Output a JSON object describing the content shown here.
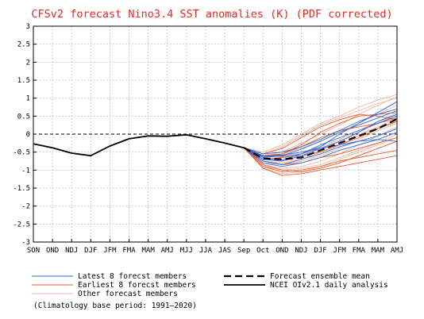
{
  "chart_data": {
    "type": "line",
    "title": "CFSv2 forecast Nino3.4 SST anomalies (K) (PDF corrected)",
    "title_color": "#e8281e",
    "xlabel": "",
    "ylabel": "",
    "x_tick_labels": [
      "SON",
      "OND",
      "NDJ",
      "DJF",
      "JFM",
      "FMA",
      "MAM",
      "AMJ",
      "MJJ",
      "JJA",
      "JAS",
      "Sep",
      "Oct",
      "OND",
      "NDJ",
      "DJF",
      "JFM",
      "FMA",
      "MAM",
      "AMJ"
    ],
    "ylim": [
      -3,
      3
    ],
    "y_ticks": [
      -3,
      -2.5,
      -2,
      -1.5,
      -1,
      -0.5,
      0,
      0.5,
      1,
      1.5,
      2,
      2.5,
      3
    ],
    "y_tick_labels": [
      "-3",
      "-2.5",
      "-2",
      "-1.5",
      "-1",
      "-0.5",
      "0",
      "0.5",
      "1",
      "1.5",
      "2",
      "2.5",
      "3"
    ],
    "grid": true,
    "zero_line": "dashed",
    "observed": {
      "name": "NCEI OIv2.1 daily analysis",
      "color": "#000000",
      "x": [
        0,
        1,
        2,
        3,
        4,
        5,
        6,
        7,
        8,
        9,
        10,
        11
      ],
      "y": [
        -0.27,
        -0.38,
        -0.53,
        -0.6,
        -0.33,
        -0.13,
        -0.05,
        -0.06,
        -0.02,
        -0.13,
        -0.25,
        -0.38
      ]
    },
    "ensemble_mean": {
      "name": "Forecast ensemble mean",
      "color": "#000000",
      "x": [
        11,
        12,
        13,
        14,
        15,
        16,
        17,
        18,
        19
      ],
      "y": [
        -0.38,
        -0.68,
        -0.7,
        -0.65,
        -0.45,
        -0.25,
        -0.05,
        0.15,
        0.42
      ]
    },
    "member_groups": [
      {
        "name": "Latest 8 forecst members",
        "color": "#2a6ad8",
        "x": [
          11,
          12,
          13,
          14,
          15,
          16,
          17,
          18,
          19
        ],
        "members": [
          [
            -0.38,
            -0.7,
            -0.75,
            -0.6,
            -0.4,
            -0.2,
            0.05,
            0.35,
            0.55
          ],
          [
            -0.38,
            -0.6,
            -0.62,
            -0.55,
            -0.35,
            0.0,
            0.3,
            0.6,
            0.9
          ],
          [
            -0.38,
            -0.75,
            -0.85,
            -0.7,
            -0.55,
            -0.35,
            -0.2,
            -0.05,
            0.15
          ],
          [
            -0.38,
            -0.65,
            -0.6,
            -0.42,
            -0.2,
            0.05,
            0.25,
            0.45,
            0.65
          ],
          [
            -0.38,
            -0.8,
            -0.9,
            -0.8,
            -0.65,
            -0.45,
            -0.3,
            -0.15,
            0.05
          ],
          [
            -0.38,
            -0.55,
            -0.5,
            -0.35,
            -0.15,
            0.1,
            0.35,
            0.55,
            0.7
          ],
          [
            -0.38,
            -0.7,
            -0.72,
            -0.55,
            -0.3,
            -0.1,
            0.1,
            0.3,
            0.5
          ],
          [
            -0.38,
            -0.62,
            -0.58,
            -0.5,
            -0.4,
            -0.3,
            -0.2,
            -0.15,
            -0.2
          ]
        ]
      },
      {
        "name": "Earliest 8 forecst members",
        "color": "#ee5a2a",
        "x": [
          11,
          12,
          13,
          14,
          15,
          16,
          17,
          18,
          19
        ],
        "members": [
          [
            -0.38,
            -0.9,
            -1.05,
            -1.0,
            -0.9,
            -0.75,
            -0.65,
            -0.55,
            -0.45
          ],
          [
            -0.38,
            -0.75,
            -0.85,
            -0.8,
            -0.65,
            -0.55,
            -0.4,
            -0.25,
            -0.1
          ],
          [
            -0.38,
            -0.55,
            -0.4,
            -0.1,
            0.2,
            0.4,
            0.55,
            0.5,
            0.4
          ],
          [
            -0.38,
            -0.65,
            -0.55,
            -0.3,
            0.05,
            0.3,
            0.5,
            0.55,
            0.6
          ],
          [
            -0.38,
            -0.85,
            -1.0,
            -1.05,
            -0.95,
            -0.8,
            -0.6,
            -0.4,
            -0.2
          ],
          [
            -0.38,
            -0.7,
            -0.65,
            -0.6,
            -0.5,
            -0.3,
            -0.1,
            0.15,
            0.35
          ],
          [
            -0.38,
            -0.95,
            -1.15,
            -1.1,
            -1.0,
            -0.9,
            -0.8,
            -0.7,
            -0.6
          ],
          [
            -0.38,
            -0.6,
            -0.55,
            -0.35,
            -0.1,
            0.1,
            0.2,
            0.3,
            0.45
          ]
        ]
      },
      {
        "name": "Other forecast members",
        "color": "#f0b2a2",
        "x": [
          11,
          12,
          13,
          14,
          15,
          16,
          17,
          18,
          19
        ],
        "members": [
          [
            -0.38,
            -0.55,
            -0.35,
            -0.05,
            0.25,
            0.45,
            0.65,
            0.85,
            1.0
          ],
          [
            -0.38,
            -0.6,
            -0.5,
            -0.25,
            0.0,
            0.25,
            0.55,
            0.8,
            1.05
          ],
          [
            -0.38,
            -0.75,
            -0.8,
            -0.7,
            -0.5,
            -0.3,
            -0.05,
            0.2,
            0.45
          ],
          [
            -0.38,
            -0.85,
            -0.95,
            -0.9,
            -0.75,
            -0.55,
            -0.3,
            -0.05,
            0.2
          ],
          [
            -0.38,
            -0.65,
            -0.6,
            -0.5,
            -0.35,
            -0.15,
            0.1,
            0.35,
            0.6
          ],
          [
            -0.38,
            -0.7,
            -0.75,
            -0.65,
            -0.45,
            -0.2,
            0.05,
            0.3,
            0.55
          ],
          [
            -0.38,
            -0.9,
            -1.0,
            -0.95,
            -0.85,
            -0.65,
            -0.45,
            -0.25,
            0.0
          ],
          [
            -0.38,
            -0.5,
            -0.3,
            0.0,
            0.3,
            0.5,
            0.75,
            0.95,
            1.1
          ],
          [
            -0.38,
            -0.8,
            -0.85,
            -0.75,
            -0.6,
            -0.4,
            -0.15,
            0.1,
            0.3
          ],
          [
            -0.38,
            -0.6,
            -0.55,
            -0.4,
            -0.2,
            0.05,
            0.3,
            0.55,
            0.8
          ],
          [
            -0.38,
            -0.95,
            -1.1,
            -1.05,
            -0.9,
            -0.7,
            -0.5,
            -0.3,
            -0.1
          ],
          [
            -0.38,
            -0.7,
            -0.65,
            -0.55,
            -0.4,
            -0.2,
            0.0,
            0.2,
            0.35
          ]
        ]
      }
    ],
    "legend": [
      {
        "label": "Latest 8 forecst members",
        "color": "#2a6ad8",
        "style": "solid"
      },
      {
        "label": "Earliest 8 forecst members",
        "color": "#ee5a2a",
        "style": "solid"
      },
      {
        "label": "Other forecast members",
        "color": "#f0b2a2",
        "style": "solid"
      },
      {
        "label": "Forecast ensemble mean",
        "color": "#000000",
        "style": "dashed"
      },
      {
        "label": "NCEI OIv2.1 daily analysis",
        "color": "#000000",
        "style": "solid"
      }
    ],
    "footnote": "(Climatology base period: 1991—2020)"
  }
}
